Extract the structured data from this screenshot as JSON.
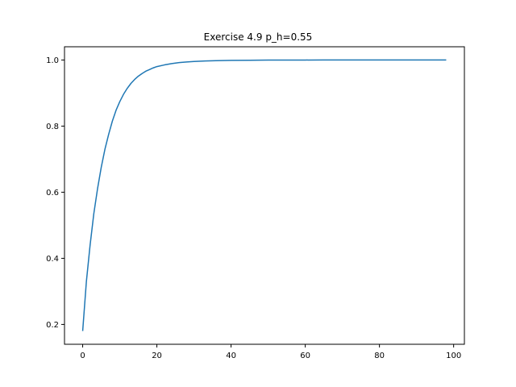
{
  "chart_data": {
    "type": "line",
    "title": "Exercise 4.9 p_h=0.55",
    "xlabel": "",
    "ylabel": "",
    "xlim": [
      -4.9,
      102.9
    ],
    "ylim": [
      0.14,
      1.04
    ],
    "xticks": [
      0,
      20,
      40,
      60,
      80,
      100
    ],
    "yticks": [
      0.2,
      0.4,
      0.6,
      0.8,
      1.0
    ],
    "xtick_labels": [
      "0",
      "20",
      "40",
      "60",
      "80",
      "100"
    ],
    "ytick_labels": [
      "0.2",
      "0.4",
      "0.6",
      "0.8",
      "1.0"
    ],
    "grid": false,
    "legend": "none",
    "series": [
      {
        "color": "#1f77b4",
        "x": [
          0,
          1,
          2,
          3,
          4,
          5,
          6,
          7,
          8,
          9,
          10,
          11,
          12,
          13,
          14,
          15,
          16,
          17,
          18,
          19,
          20,
          22,
          24,
          26,
          28,
          30,
          33,
          36,
          40,
          45,
          50,
          55,
          60,
          65,
          70,
          75,
          80,
          85,
          90,
          95,
          98
        ],
        "y": [
          0.18,
          0.33,
          0.44,
          0.535,
          0.61,
          0.675,
          0.73,
          0.775,
          0.815,
          0.848,
          0.874,
          0.896,
          0.914,
          0.929,
          0.941,
          0.951,
          0.959,
          0.966,
          0.971,
          0.976,
          0.98,
          0.985,
          0.989,
          0.992,
          0.994,
          0.9955,
          0.997,
          0.998,
          0.9988,
          0.9993,
          0.9996,
          0.9998,
          0.9999,
          0.99995,
          1.0,
          1.0,
          1.0,
          1.0,
          1.0,
          1.0,
          1.0
        ]
      }
    ]
  }
}
